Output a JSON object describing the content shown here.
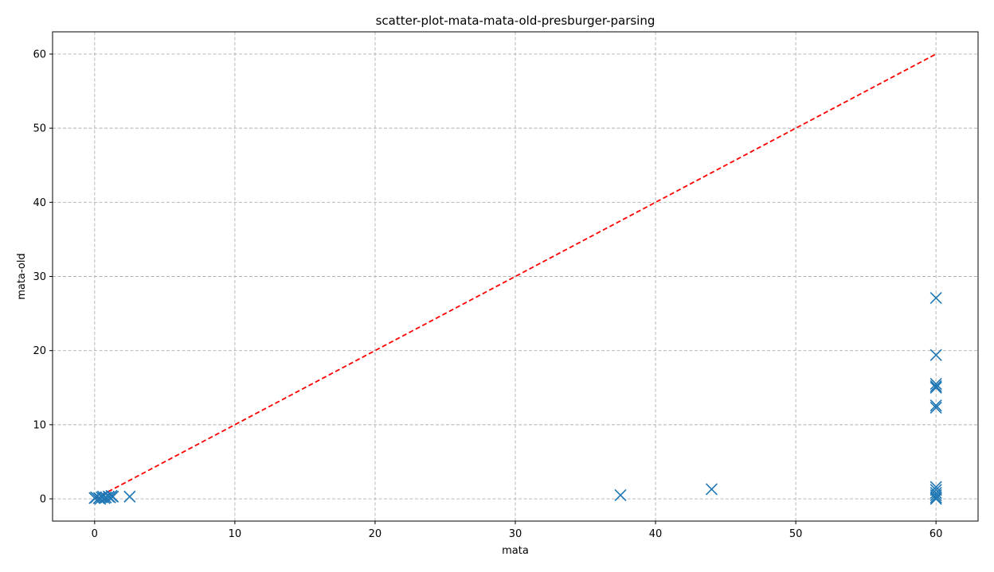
{
  "chart_data": {
    "type": "scatter",
    "title": "scatter-plot-mata-mata-old-presburger-parsing",
    "xlabel": "mata",
    "ylabel": "mata-old",
    "xlim": [
      -3,
      63
    ],
    "ylim": [
      -3,
      63
    ],
    "xticks": [
      0,
      10,
      20,
      30,
      40,
      50,
      60
    ],
    "yticks": [
      0,
      10,
      20,
      30,
      40,
      50,
      60
    ],
    "grid": true,
    "marker": "x",
    "point_color": "#1f77b4",
    "diagonal": {
      "from": [
        0,
        0
      ],
      "to": [
        60,
        60
      ],
      "color": "#ff0000",
      "style": "dashed"
    },
    "series": [
      {
        "points": [
          [
            0,
            0.1
          ],
          [
            0.1,
            0.2
          ],
          [
            0.3,
            0.1
          ],
          [
            0.5,
            0.2
          ],
          [
            0.6,
            0.3
          ],
          [
            0.8,
            0.2
          ],
          [
            1.0,
            0.3
          ],
          [
            1.1,
            0.2
          ],
          [
            1.2,
            0.4
          ],
          [
            1.3,
            0.3
          ],
          [
            0.4,
            0.0
          ],
          [
            0.7,
            0.1
          ],
          [
            2.5,
            0.3
          ],
          [
            37.5,
            0.5
          ],
          [
            44,
            1.3
          ],
          [
            60,
            27.1
          ],
          [
            60,
            19.4
          ],
          [
            60,
            15.5
          ],
          [
            60,
            15.2
          ],
          [
            60,
            15.0
          ],
          [
            60,
            12.6
          ],
          [
            60,
            12.3
          ],
          [
            60,
            1.6
          ],
          [
            60,
            1.2
          ],
          [
            60,
            0.8
          ],
          [
            60,
            0.5
          ],
          [
            60,
            0.2
          ],
          [
            60,
            0.0
          ]
        ]
      }
    ]
  }
}
